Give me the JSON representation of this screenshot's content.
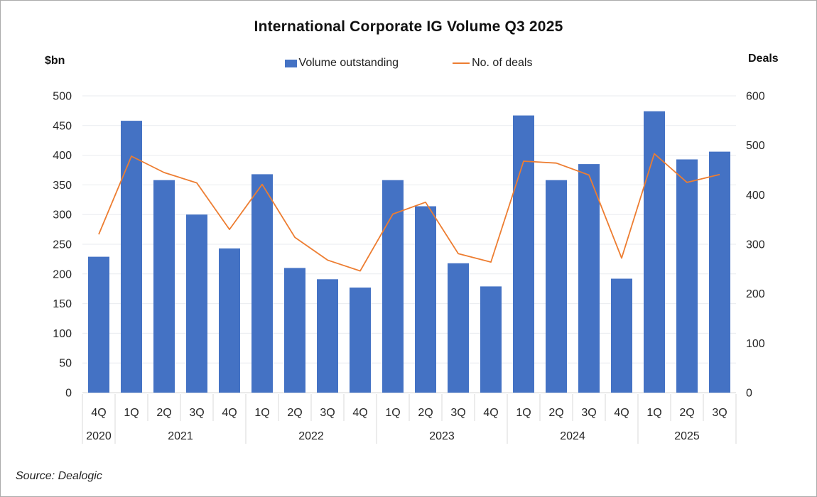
{
  "page": {
    "title": "International Corporate IG Volume Q3 2025",
    "source_note": "Source: Dealogic"
  },
  "colors": {
    "bar": "#4472C4",
    "line": "#ED7D31",
    "gridline": "#E9EBEF",
    "axis_line": "#D6D6D6",
    "separator": "#D9D9D9",
    "tick_text": "#262626",
    "title_text": "#111111"
  },
  "chart_data": {
    "type": "bar",
    "combo": "bar+line dual axis",
    "title": "International Corporate IG Volume Q3 2025",
    "grid": "horizontal",
    "legend_position": "top-center",
    "source": "Source: Dealogic",
    "categories": [
      "4Q",
      "1Q",
      "2Q",
      "3Q",
      "4Q",
      "1Q",
      "2Q",
      "3Q",
      "4Q",
      "1Q",
      "2Q",
      "3Q",
      "4Q",
      "1Q",
      "2Q",
      "3Q",
      "4Q",
      "1Q",
      "2Q",
      "3Q"
    ],
    "year_groups": [
      {
        "label": "2020",
        "span": 1
      },
      {
        "label": "2021",
        "span": 4
      },
      {
        "label": "2022",
        "span": 4
      },
      {
        "label": "2023",
        "span": 4
      },
      {
        "label": "2024",
        "span": 4
      },
      {
        "label": "2025",
        "span": 3
      }
    ],
    "series": [
      {
        "name": "Volume outstanding",
        "type": "bar",
        "axis": "left",
        "color": "#4472C4",
        "values": [
          229,
          458,
          358,
          300,
          243,
          368,
          210,
          191,
          177,
          358,
          314,
          218,
          179,
          467,
          358,
          385,
          192,
          474,
          393,
          406
        ]
      },
      {
        "name": "No. of deals",
        "type": "line",
        "axis": "right",
        "color": "#ED7D31",
        "values": [
          320,
          478,
          445,
          424,
          330,
          421,
          314,
          268,
          246,
          361,
          385,
          281,
          264,
          468,
          464,
          440,
          272,
          483,
          425,
          441
        ]
      }
    ],
    "left_axis": {
      "title": "$bn",
      "min": 0,
      "max": 500,
      "step": 50,
      "ticks": [
        0,
        50,
        100,
        150,
        200,
        250,
        300,
        350,
        400,
        450,
        500
      ]
    },
    "right_axis": {
      "title": "Deals",
      "min": 0,
      "max": 600,
      "step": 100,
      "ticks": [
        0,
        100,
        200,
        300,
        400,
        500,
        600
      ]
    }
  }
}
